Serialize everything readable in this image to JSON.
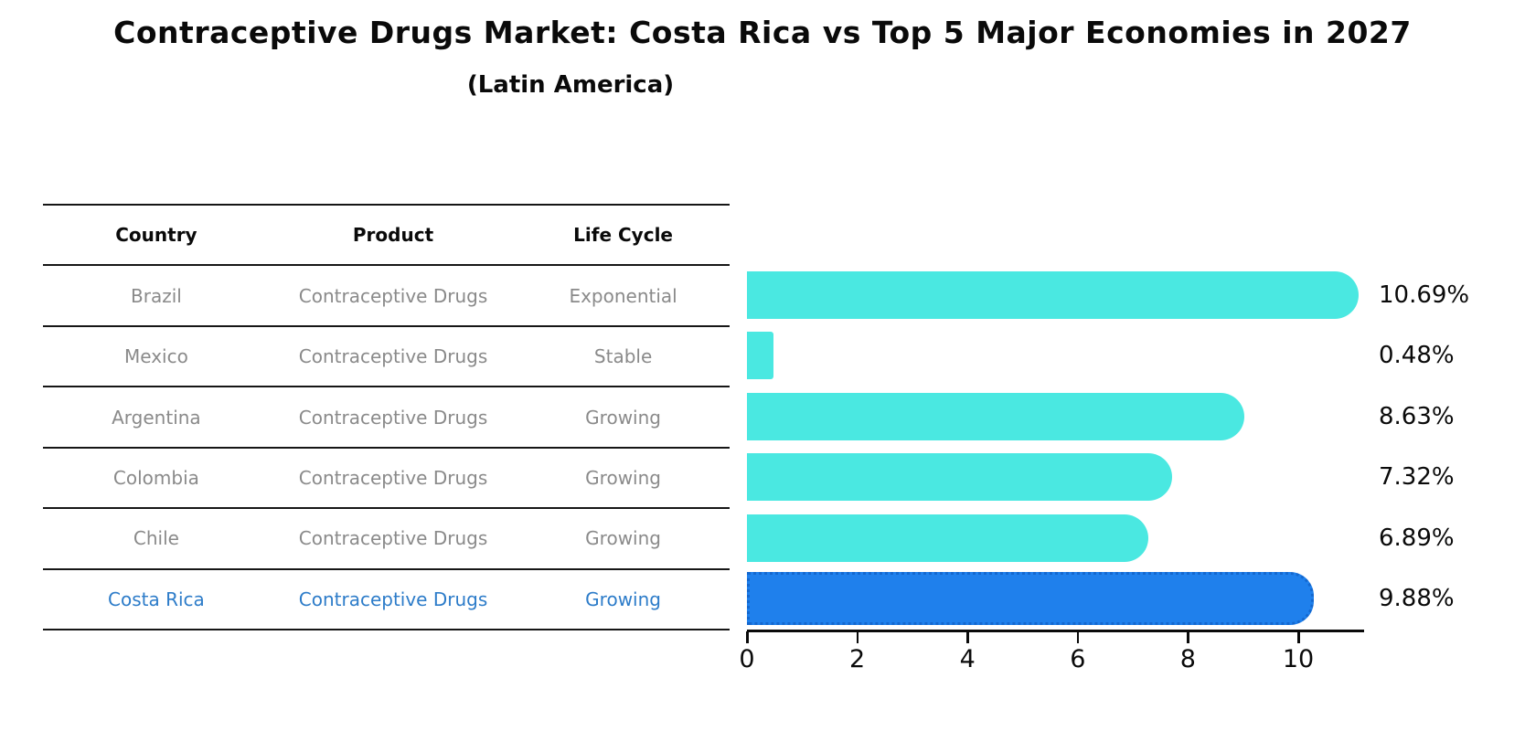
{
  "table": {
    "headers": [
      "Country",
      "Product",
      "Life Cycle"
    ],
    "rows": [
      {
        "country": "Brazil",
        "product": "Contraceptive Drugs",
        "life_cycle": "Exponential",
        "highlight": false
      },
      {
        "country": "Mexico",
        "product": "Contraceptive Drugs",
        "life_cycle": "Stable",
        "highlight": false
      },
      {
        "country": "Argentina",
        "product": "Contraceptive Drugs",
        "life_cycle": "Growing",
        "highlight": false
      },
      {
        "country": "Colombia",
        "product": "Contraceptive Drugs",
        "life_cycle": "Growing",
        "highlight": false
      },
      {
        "country": "Chile",
        "product": "Contraceptive Drugs",
        "life_cycle": "Growing",
        "highlight": false
      },
      {
        "country": "Costa Rica",
        "product": "Contraceptive Drugs",
        "life_cycle": "Growing",
        "highlight": true
      }
    ]
  },
  "chart_data": {
    "type": "bar",
    "orientation": "horizontal",
    "title": "Contraceptive Drugs Market: Costa Rica vs Top 5 Major Economies in 2027",
    "subtitle": "(Latin America)",
    "categories": [
      "Brazil",
      "Mexico",
      "Argentina",
      "Colombia",
      "Chile",
      "Costa Rica"
    ],
    "values": [
      10.69,
      0.48,
      8.63,
      7.32,
      6.89,
      9.88
    ],
    "display_values": [
      "10.69%",
      "0.48%",
      "8.63%",
      "7.32%",
      "6.89%",
      "9.88%"
    ],
    "highlight_index": 5,
    "xticks": [
      "0",
      "2",
      "4",
      "6",
      "8",
      "10"
    ],
    "xlim": [
      0,
      11.2
    ],
    "grid": false,
    "legend": false,
    "bar_color": "#4ae8e1",
    "highlight_color": "#1f80ec",
    "highlight_text_color": "#2d7cc9",
    "table_text_color": "#8a8a8a"
  }
}
